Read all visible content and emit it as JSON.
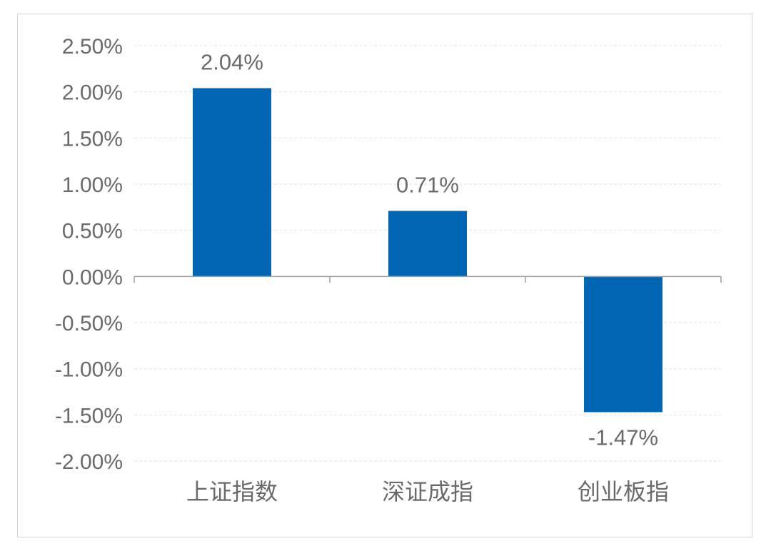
{
  "chart_data": {
    "type": "bar",
    "categories": [
      "上证指数",
      "深证成指",
      "创业板指"
    ],
    "values": [
      2.04,
      0.71,
      -1.47
    ],
    "value_labels": [
      "2.04%",
      "0.71%",
      "-1.47%"
    ],
    "ylim": [
      -2.0,
      2.5
    ],
    "yticks": [
      2.5,
      2.0,
      1.5,
      1.0,
      0.5,
      0.0,
      -0.5,
      -1.0,
      -1.5,
      -2.0
    ],
    "ytick_labels": [
      "2.50%",
      "2.00%",
      "1.50%",
      "1.00%",
      "0.50%",
      "0.00%",
      "-0.50%",
      "-1.00%",
      "-1.50%",
      "-2.00%"
    ],
    "grid": true,
    "bar_color": "#0066b3",
    "title": "",
    "xlabel": "",
    "ylabel": ""
  }
}
